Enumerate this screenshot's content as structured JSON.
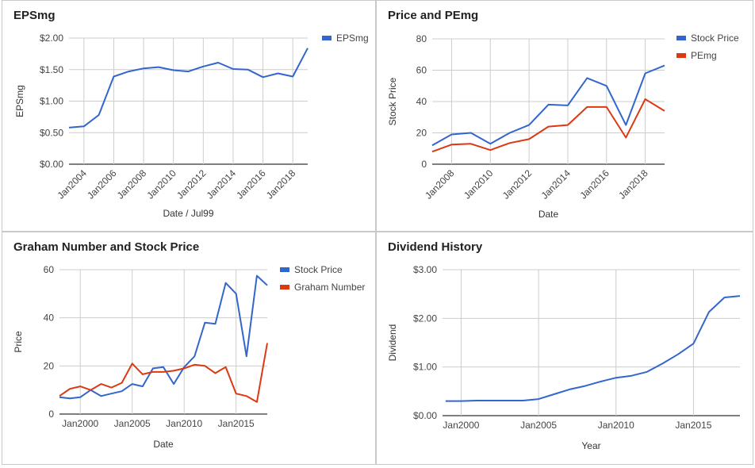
{
  "chart_data": [
    {
      "type": "line",
      "title": "EPSmg",
      "xlabel": "Date / Jul99",
      "ylabel": "EPSmg",
      "ylim": [
        0,
        2
      ],
      "y_ticks": [
        "$0.00",
        "$0.50",
        "$1.00",
        "$1.50",
        "$2.00"
      ],
      "x_ticks": [
        "Jan2004",
        "Jan2006",
        "Jan2008",
        "Jan2010",
        "Jan2012",
        "Jan2014",
        "Jan2016",
        "Jan2018"
      ],
      "x_tick_years": [
        2004,
        2006,
        2008,
        2010,
        2012,
        2014,
        2016,
        2018
      ],
      "xlim": [
        2003.0,
        2019.0
      ],
      "grid": true,
      "legend": "right",
      "series": [
        {
          "name": "EPSmg",
          "color": "#3366cc",
          "x": [
            2003.0,
            2004.0,
            2005.0,
            2006.0,
            2007.0,
            2008.0,
            2009.0,
            2010.0,
            2011.0,
            2012.0,
            2013.0,
            2014.0,
            2015.0,
            2016.0,
            2017.0,
            2018.0,
            2019.0
          ],
          "y": [
            0.58,
            0.6,
            0.78,
            1.39,
            1.47,
            1.52,
            1.54,
            1.49,
            1.47,
            1.55,
            1.61,
            1.51,
            1.5,
            1.38,
            1.44,
            1.39,
            1.84
          ]
        }
      ]
    },
    {
      "type": "line",
      "title": "Price and PEmg",
      "xlabel": "Date",
      "ylabel": "Stock Price",
      "ylim": [
        0,
        80
      ],
      "y_ticks": [
        "0",
        "20",
        "40",
        "60",
        "80"
      ],
      "x_ticks": [
        "Jan2008",
        "Jan2010",
        "Jan2012",
        "Jan2014",
        "Jan2016",
        "Jan2018"
      ],
      "x_tick_years": [
        2008,
        2010,
        2012,
        2014,
        2016,
        2018
      ],
      "xlim": [
        2007.0,
        2019.0
      ],
      "grid": true,
      "legend": "right",
      "series": [
        {
          "name": "Stock Price",
          "color": "#3366cc",
          "x": [
            2007.0,
            2008.0,
            2009.0,
            2010.0,
            2011.0,
            2012.0,
            2013.0,
            2014.0,
            2015.0,
            2016.0,
            2017.0,
            2018.0,
            2019.0
          ],
          "y": [
            12,
            19,
            20,
            13,
            20,
            25,
            38,
            37.5,
            55,
            50,
            25,
            58,
            63
          ]
        },
        {
          "name": "PEmg",
          "color": "#dc3912",
          "x": [
            2007.0,
            2008.0,
            2009.0,
            2010.0,
            2011.0,
            2012.0,
            2013.0,
            2014.0,
            2015.0,
            2016.0,
            2017.0,
            2018.0,
            2019.0
          ],
          "y": [
            8,
            12.5,
            13,
            9,
            13.5,
            16,
            24,
            25,
            36.5,
            36.5,
            17,
            41.5,
            34
          ]
        }
      ]
    },
    {
      "type": "line",
      "title": "Graham Number and Stock Price",
      "xlabel": "Date",
      "ylabel": "Price",
      "ylim": [
        0,
        60
      ],
      "y_ticks": [
        "0",
        "20",
        "40",
        "60"
      ],
      "x_ticks": [
        "Jan2000",
        "Jan2005",
        "Jan2010",
        "Jan2015"
      ],
      "x_tick_years": [
        2000,
        2005,
        2010,
        2015
      ],
      "xlim": [
        1998.0,
        2018.0
      ],
      "grid": true,
      "legend": "right",
      "series": [
        {
          "name": "Stock Price",
          "color": "#3366cc",
          "x": [
            1998.0,
            1999.0,
            2000.0,
            2001.0,
            2002.0,
            2003.0,
            2004.0,
            2005.0,
            2006.0,
            2007.0,
            2008.0,
            2009.0,
            2010.0,
            2011.0,
            2012.0,
            2013.0,
            2014.0,
            2015.0,
            2016.0,
            2017.0,
            2018.0
          ],
          "y": [
            7,
            6.5,
            7,
            10,
            7.5,
            8.5,
            9.5,
            12.5,
            11.5,
            19,
            19.5,
            12.5,
            19.5,
            24,
            38,
            37.5,
            54.5,
            50,
            24,
            57.5,
            53.5
          ]
        },
        {
          "name": "Graham Number",
          "color": "#dc3912",
          "x": [
            1998.0,
            1999.0,
            2000.0,
            2001.0,
            2002.0,
            2003.0,
            2004.0,
            2005.0,
            2006.0,
            2007.0,
            2008.0,
            2009.0,
            2010.0,
            2011.0,
            2012.0,
            2013.0,
            2014.0,
            2015.0,
            2016.0,
            2017.0,
            2018.0
          ],
          "y": [
            7.5,
            10.5,
            11.5,
            10,
            12.5,
            11,
            13,
            21,
            16.5,
            17.5,
            17.5,
            18,
            19,
            20.5,
            20,
            17,
            19.5,
            8.5,
            7.5,
            5,
            29.5
          ]
        }
      ]
    },
    {
      "type": "line",
      "title": "Dividend History",
      "xlabel": "Year",
      "ylabel": "Dividend",
      "ylim": [
        0,
        3
      ],
      "y_ticks": [
        "$0.00",
        "$1.00",
        "$2.00",
        "$3.00"
      ],
      "x_ticks": [
        "Jan2000",
        "Jan2005",
        "Jan2010",
        "Jan2015"
      ],
      "x_tick_years": [
        2000,
        2005,
        2010,
        2015
      ],
      "xlim": [
        1998.8,
        2018.0
      ],
      "grid": true,
      "legend": "none",
      "series": [
        {
          "name": "",
          "color": "#3366cc",
          "x": [
            1999.0,
            2000.0,
            2001.0,
            2002.0,
            2003.0,
            2004.0,
            2005.0,
            2006.0,
            2007.0,
            2008.0,
            2009.0,
            2010.0,
            2011.0,
            2012.0,
            2013.0,
            2014.0,
            2015.0,
            2016.0,
            2017.0,
            2018.0
          ],
          "y": [
            0.3,
            0.3,
            0.31,
            0.31,
            0.31,
            0.31,
            0.34,
            0.44,
            0.54,
            0.61,
            0.7,
            0.78,
            0.82,
            0.9,
            1.07,
            1.26,
            1.48,
            2.13,
            2.43,
            2.46
          ]
        }
      ]
    }
  ]
}
